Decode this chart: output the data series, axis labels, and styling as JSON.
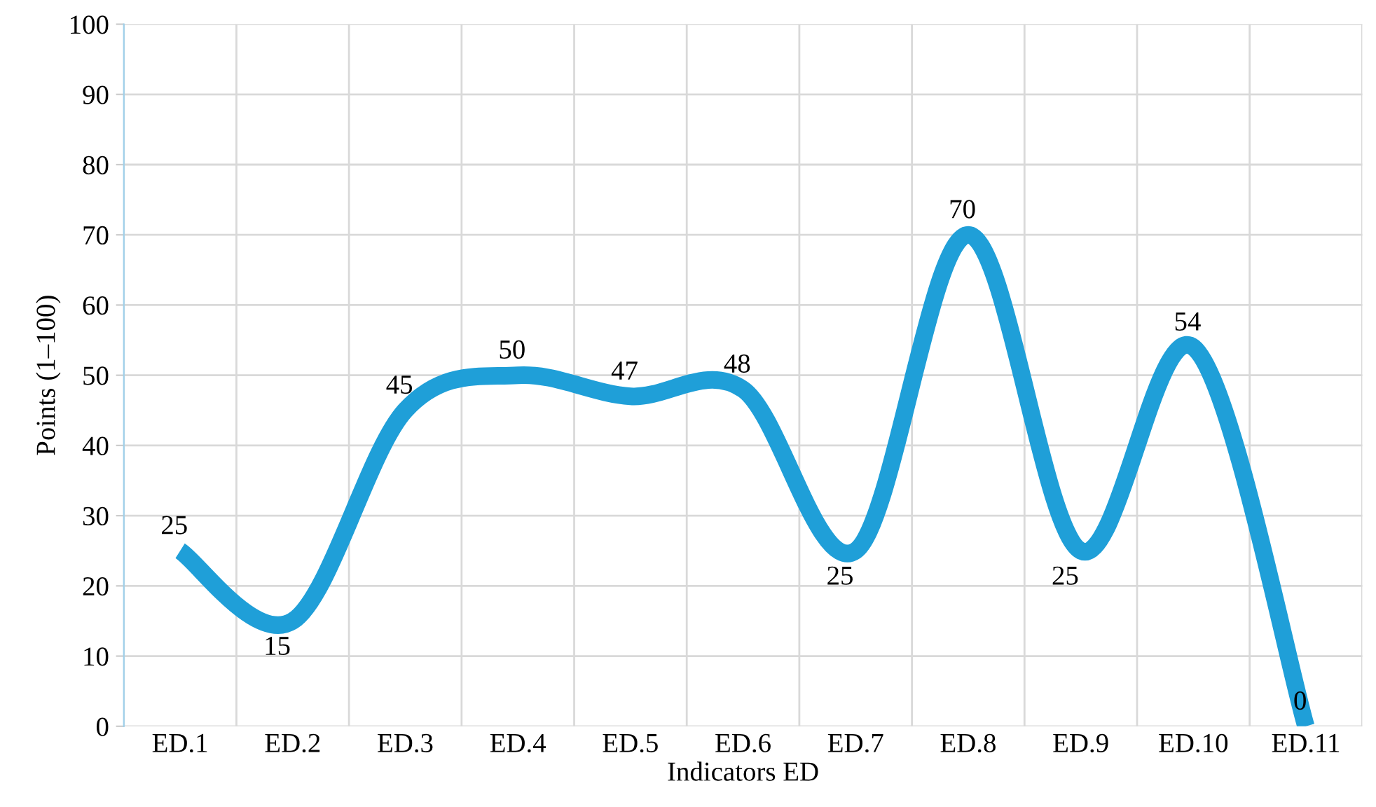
{
  "chart_data": {
    "type": "line",
    "xlabel": "Indicators ED",
    "ylabel": "Points (1–100)",
    "categories": [
      "ED.1",
      "ED.2",
      "ED.3",
      "ED.4",
      "ED.5",
      "ED.6",
      "ED.7",
      "ED.8",
      "ED.9",
      "ED.10",
      "ED.11"
    ],
    "series": [
      {
        "color": "#1f9fd8",
        "values": [
          25,
          15,
          45,
          50,
          47,
          48,
          25,
          70,
          25,
          54,
          0
        ]
      }
    ],
    "ylim": [
      0,
      100
    ],
    "yticks": [
      0,
      10,
      20,
      30,
      40,
      50,
      60,
      70,
      80,
      90,
      100
    ],
    "grid": true,
    "data_labels": true,
    "marker": "none",
    "line_style": "solid"
  }
}
